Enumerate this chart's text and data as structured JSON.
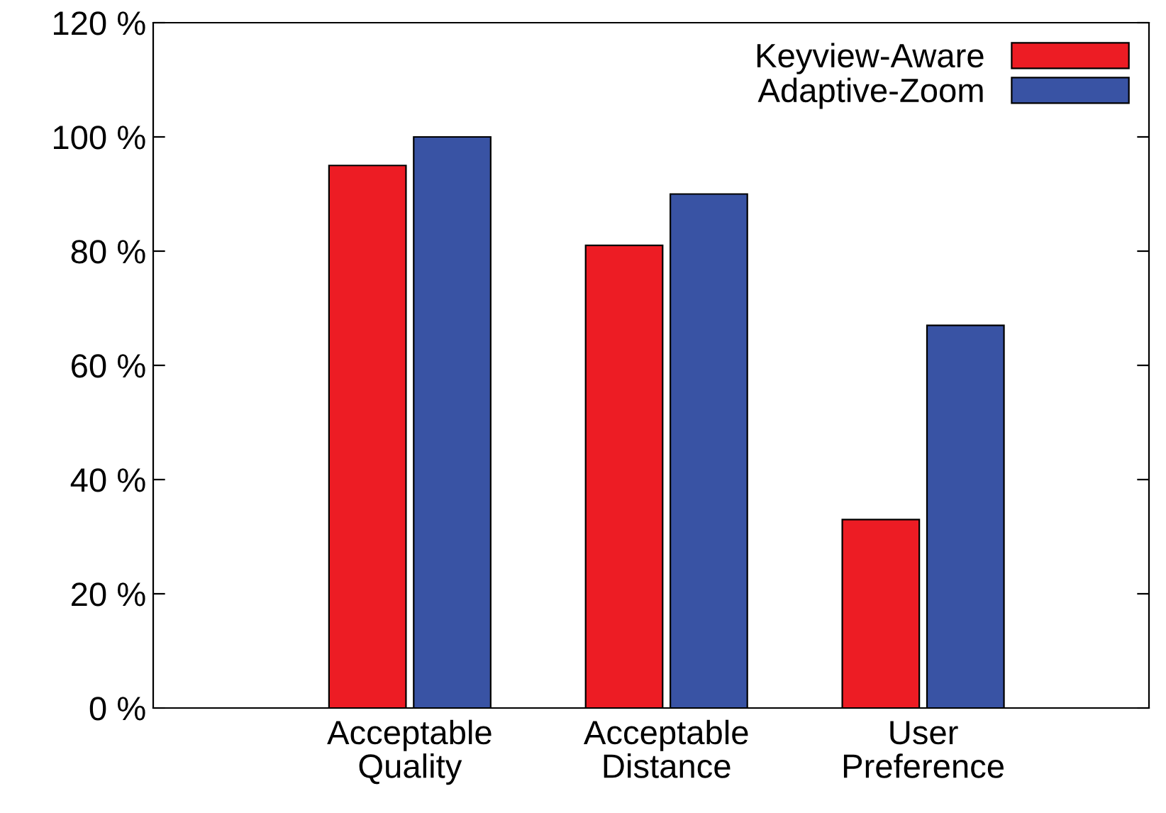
{
  "chart_data": {
    "type": "bar",
    "categories": [
      "Acceptable\nQuality",
      "Acceptable\nDistance",
      "User\nPreference"
    ],
    "series": [
      {
        "name": "Keyview-Aware",
        "color": "#ed1c24",
        "values": [
          95,
          81,
          33
        ]
      },
      {
        "name": "Adaptive-Zoom",
        "color": "#3953a4",
        "values": [
          100,
          90,
          67
        ]
      }
    ],
    "ylim": [
      0,
      120
    ],
    "yticks": [
      {
        "value": 0,
        "label": "0 %"
      },
      {
        "value": 20,
        "label": "20 %"
      },
      {
        "value": 40,
        "label": "40 %"
      },
      {
        "value": 60,
        "label": "60 %"
      },
      {
        "value": 80,
        "label": "80 %"
      },
      {
        "value": 100,
        "label": "100 %"
      },
      {
        "value": 120,
        "label": "120 %"
      }
    ],
    "grid": false,
    "legend": "top right"
  }
}
